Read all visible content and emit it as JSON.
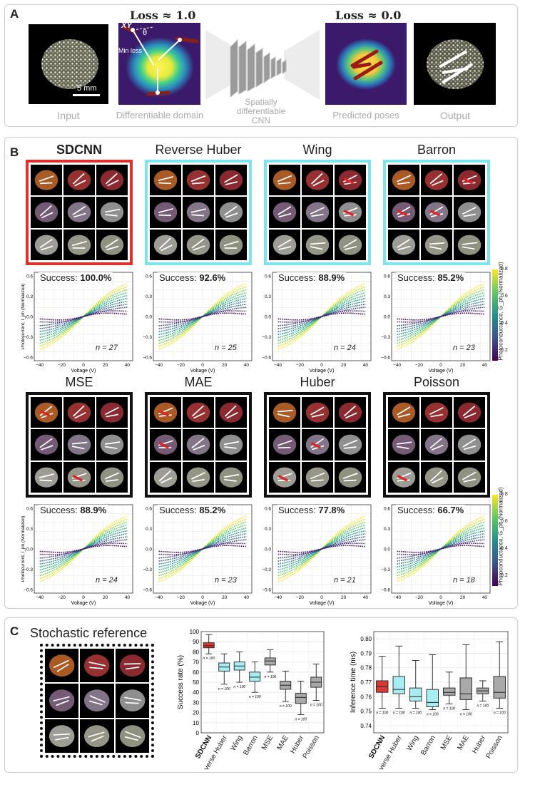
{
  "panelA": {
    "label": "A",
    "loss_left": "Loss ≈ 1.0",
    "loss_right": "Loss ≈ 0.0",
    "xy": "XY",
    "theta": "θ",
    "min_loss": "Min loss",
    "scalebar": "5 mm",
    "cnn_label": "Spatially differentiable CNN",
    "captions": [
      "Input",
      "Differentiable domain",
      "Predicted poses",
      "Output"
    ]
  },
  "panelB": {
    "label": "B",
    "methods": [
      {
        "name": "SDCNN",
        "success_prefix": "Success: ",
        "success": "100.0%",
        "n": "n = 27",
        "frame": "#e0302e",
        "bold": true
      },
      {
        "name": "Reverse Huber",
        "success_prefix": "Success: ",
        "success": "92.6%",
        "n": "n = 25",
        "frame": "#7de3ec",
        "bold": false
      },
      {
        "name": "Wing",
        "success_prefix": "Success: ",
        "success": "88.9%",
        "n": "n = 24",
        "frame": "#7de3ec",
        "bold": false
      },
      {
        "name": "Barron",
        "success_prefix": "Success: ",
        "success": "85.2%",
        "n": "n = 23",
        "frame": "#7de3ec",
        "bold": false
      },
      {
        "name": "MSE",
        "success_prefix": "Success: ",
        "success": "88.9%",
        "n": "n = 24",
        "frame": "#111111",
        "bold": false
      },
      {
        "name": "MAE",
        "success_prefix": "Success: ",
        "success": "85.2%",
        "n": "n = 23",
        "frame": "#111111",
        "bold": false
      },
      {
        "name": "Huber",
        "success_prefix": "Success: ",
        "success": "77.8%",
        "n": "n = 21",
        "frame": "#111111",
        "bold": false
      },
      {
        "name": "Poisson",
        "success_prefix": "Success: ",
        "success": "66.7%",
        "n": "n = 18",
        "frame": "#111111",
        "bold": false
      }
    ],
    "iv_ylabel": "Photocurrent, I_ph (Normalized)",
    "iv_xlabel": "Voltage (V)",
    "iv_xticks": [
      "−40",
      "−20",
      "0",
      "20",
      "40"
    ],
    "iv_yticks": [
      "0.6",
      "0.3",
      "0.0",
      "−0.3",
      "−0.6"
    ],
    "colorbar_label": "Photoconductance, G_ph (Normalized)",
    "colorbar_ticks": [
      "0.8",
      "0.6",
      "0.4",
      "0.2"
    ]
  },
  "panelC": {
    "label": "C",
    "stochastic_title": "Stochastic reference"
  },
  "chart_data": [
    {
      "type": "box",
      "ylabel": "Success rate (%)",
      "ylim": [
        0,
        100
      ],
      "yticks": [
        "0",
        "10",
        "20",
        "30",
        "40",
        "50",
        "60",
        "70",
        "80",
        "90",
        "100"
      ],
      "categories": [
        "SDCNN",
        "Reverse Huber",
        "Wing",
        "Barron",
        "MSE",
        "MAE",
        "Huber",
        "Poisson"
      ],
      "n_label": "n = 100",
      "colors": [
        "#d93a36",
        "#a6eef4",
        "#a6eef4",
        "#a6eef4",
        "#a9a9a9",
        "#a9a9a9",
        "#a9a9a9",
        "#a9a9a9"
      ],
      "boxes": [
        {
          "min": 78,
          "q1": 84,
          "median": 86,
          "q3": 89,
          "max": 97
        },
        {
          "min": 48,
          "q1": 61,
          "median": 65,
          "q3": 69,
          "max": 78
        },
        {
          "min": 50,
          "q1": 62,
          "median": 66,
          "q3": 70,
          "max": 80
        },
        {
          "min": 40,
          "q1": 51,
          "median": 55,
          "q3": 60,
          "max": 70
        },
        {
          "min": 60,
          "q1": 67,
          "median": 71,
          "q3": 74,
          "max": 82
        },
        {
          "min": 31,
          "q1": 43,
          "median": 47,
          "q3": 51,
          "max": 61
        },
        {
          "min": 18,
          "q1": 29,
          "median": 35,
          "q3": 39,
          "max": 51
        },
        {
          "min": 32,
          "q1": 45,
          "median": 50,
          "q3": 55,
          "max": 68
        }
      ]
    },
    {
      "type": "box",
      "ylabel": "Inference time (ms)",
      "ylim": [
        0.735,
        0.805
      ],
      "yticks": [
        "0.74",
        "0.75",
        "0.76",
        "0.77",
        "0.78",
        "0.79",
        "0.80"
      ],
      "categories": [
        "SDCNN",
        "Reverse Huber",
        "Wing",
        "Barron",
        "MSE",
        "MAE",
        "Huber",
        "Poisson"
      ],
      "n_label": "n = 100",
      "colors": [
        "#d93a36",
        "#a6eef4",
        "#a6eef4",
        "#a6eef4",
        "#a9a9a9",
        "#a9a9a9",
        "#a9a9a9",
        "#a9a9a9"
      ],
      "boxes": [
        {
          "min": 0.752,
          "q1": 0.763,
          "median": 0.767,
          "q3": 0.771,
          "max": 0.788
        },
        {
          "min": 0.752,
          "q1": 0.762,
          "median": 0.765,
          "q3": 0.774,
          "max": 0.795
        },
        {
          "min": 0.752,
          "q1": 0.757,
          "median": 0.76,
          "q3": 0.766,
          "max": 0.785
        },
        {
          "min": 0.751,
          "q1": 0.753,
          "median": 0.756,
          "q3": 0.765,
          "max": 0.789
        },
        {
          "min": 0.755,
          "q1": 0.761,
          "median": 0.763,
          "q3": 0.766,
          "max": 0.777
        },
        {
          "min": 0.751,
          "q1": 0.758,
          "median": 0.762,
          "q3": 0.773,
          "max": 0.796
        },
        {
          "min": 0.757,
          "q1": 0.762,
          "median": 0.764,
          "q3": 0.766,
          "max": 0.771
        },
        {
          "min": 0.752,
          "q1": 0.759,
          "median": 0.763,
          "q3": 0.774,
          "max": 0.798
        }
      ]
    }
  ]
}
